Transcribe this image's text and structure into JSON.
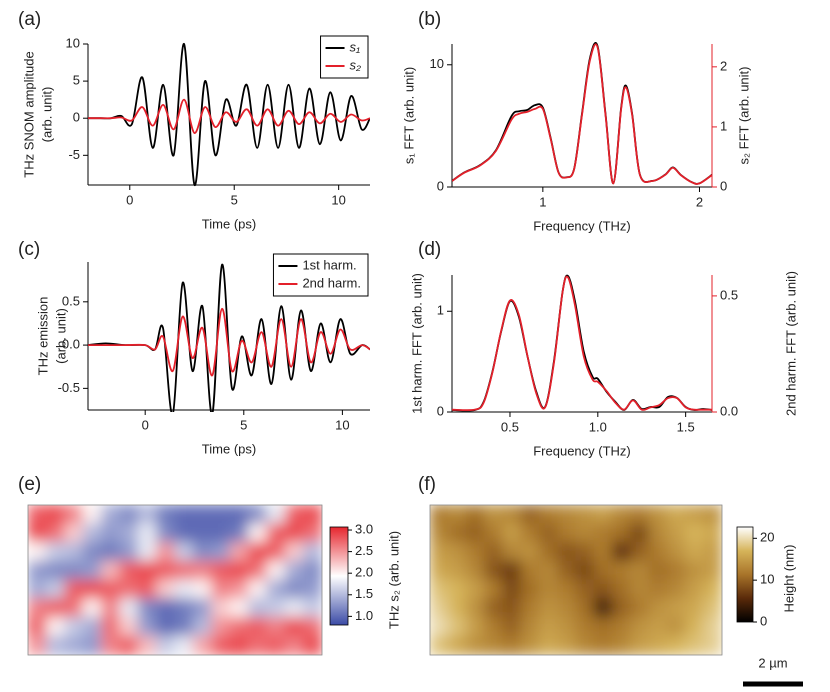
{
  "chart_data": [
    {
      "type": "line",
      "label": "(a)",
      "xlabel": "Time (ps)",
      "ylabel": [
        "THz SNOM amplitude",
        "(arb. unit)"
      ],
      "xlim": [
        -2,
        11.5
      ],
      "xticks": [
        0,
        5,
        10
      ],
      "ylim": [
        -9,
        10
      ],
      "yticks": [
        10,
        5,
        0,
        -5
      ],
      "legend": "upper right",
      "x": [
        -2,
        -1.4,
        -0.9,
        -0.4,
        0.1,
        0.6,
        1.1,
        1.6,
        2.1,
        2.6,
        3.1,
        3.6,
        4.1,
        4.6,
        5.1,
        5.6,
        6.1,
        6.6,
        7.1,
        7.6,
        8.1,
        8.6,
        9.1,
        9.6,
        10.1,
        10.6,
        11.1,
        11.5
      ],
      "series": [
        {
          "name": "s₁",
          "color": "#000000",
          "values": [
            0,
            0,
            0,
            0.3,
            -0.8,
            5.5,
            -4,
            4.5,
            -5,
            10,
            -9,
            5,
            -5,
            2.5,
            -1,
            4.5,
            -4,
            4.5,
            -4,
            4.5,
            -4,
            4,
            -3.5,
            3.5,
            -3,
            3,
            -1.5,
            0
          ]
        },
        {
          "name": "s₂",
          "color": "#e3202a",
          "values": [
            0,
            0,
            0,
            0.1,
            -0.3,
            1.5,
            -1,
            1.8,
            -1.5,
            2.5,
            -2,
            1.5,
            -1.2,
            0.8,
            -0.5,
            1.2,
            -1,
            1.2,
            -1,
            1,
            -0.8,
            0.8,
            -0.7,
            0.6,
            -0.5,
            0.5,
            -0.3,
            0
          ]
        }
      ]
    },
    {
      "type": "line",
      "label": "(b)",
      "xlabel": "Frequency (THz)",
      "ylabel": [
        "s₁ FFT (arb. unit)"
      ],
      "y2label": "s₂ FFT (arb. unit)",
      "xlim": [
        0.42,
        2.08
      ],
      "xticks": [
        1,
        2
      ],
      "ylim": [
        0,
        11.7
      ],
      "yticks": [
        0,
        10
      ],
      "y2lim": [
        0,
        2.38
      ],
      "y2ticks": [
        0,
        1,
        2
      ],
      "x": [
        0.42,
        0.5,
        0.6,
        0.7,
        0.8,
        0.85,
        0.9,
        0.95,
        1.0,
        1.05,
        1.1,
        1.15,
        1.2,
        1.25,
        1.3,
        1.35,
        1.4,
        1.45,
        1.5,
        1.53,
        1.57,
        1.62,
        1.7,
        1.78,
        1.83,
        1.88,
        1.95,
        2.0,
        2.08
      ],
      "series": [
        {
          "color": "#000000",
          "values": [
            0.5,
            1.2,
            1.8,
            3,
            5.8,
            6.2,
            6.3,
            6.7,
            6.5,
            4,
            1.2,
            0.8,
            1.5,
            6,
            10.5,
            11.5,
            6,
            0.3,
            6.5,
            8.3,
            6,
            1,
            0.5,
            1,
            1.6,
            1,
            0.4,
            0.3,
            1
          ]
        },
        {
          "color": "#e3202a",
          "axis": "y2",
          "values": [
            0.1,
            0.24,
            0.36,
            0.6,
            1.12,
            1.22,
            1.25,
            1.3,
            1.3,
            0.8,
            0.24,
            0.16,
            0.3,
            1.2,
            2.1,
            2.32,
            1.2,
            0.06,
            1.3,
            1.66,
            1.2,
            0.2,
            0.1,
            0.2,
            0.32,
            0.2,
            0.08,
            0.06,
            0.2
          ]
        }
      ]
    },
    {
      "type": "line",
      "label": "(c)",
      "xlabel": "Time (ps)",
      "ylabel": [
        "THz emission",
        "(arb. unit)"
      ],
      "xlim": [
        -2.9,
        11.4
      ],
      "xticks": [
        0,
        5,
        10
      ],
      "ylim": [
        -0.75,
        0.96
      ],
      "yticks": [
        0.5,
        {
          "value": 0,
          "label": "0.0"
        },
        -0.5
      ],
      "legend": "upper right",
      "x": [
        -2.9,
        -2,
        -1,
        0,
        0.5,
        0.9,
        1.4,
        1.9,
        2.4,
        2.9,
        3.4,
        3.9,
        4.4,
        4.9,
        5.4,
        5.9,
        6.4,
        6.9,
        7.4,
        7.9,
        8.4,
        8.9,
        9.4,
        9.9,
        10.4,
        11,
        11.4
      ],
      "series": [
        {
          "name": "1st harm.",
          "color": "#000000",
          "values": [
            0,
            0.02,
            0,
            0,
            -0.05,
            0.2,
            -0.8,
            0.72,
            -0.3,
            0.45,
            -0.8,
            0.93,
            -0.5,
            0.1,
            -0.35,
            0.3,
            -0.45,
            0.45,
            -0.4,
            0.4,
            -0.3,
            0.25,
            -0.2,
            0.3,
            -0.1,
            0,
            -0.05
          ]
        },
        {
          "name": "2nd harm.",
          "color": "#e3202a",
          "values": [
            0,
            0,
            0,
            0,
            -0.05,
            0.1,
            -0.3,
            0.33,
            -0.15,
            0.2,
            -0.35,
            0.42,
            -0.3,
            0.05,
            -0.2,
            0.15,
            -0.25,
            0.3,
            -0.25,
            0.3,
            -0.2,
            0.15,
            -0.1,
            0.18,
            -0.05,
            0,
            -0.05
          ]
        }
      ]
    },
    {
      "type": "line",
      "label": "(d)",
      "xlabel": "Frequency (THz)",
      "ylabel": [
        "1st harm. FFT (arb. unit)"
      ],
      "y2label": "2nd harm. FFT (arb. unit)",
      "xlim": [
        0.17,
        1.65
      ],
      "xticks": [
        0.5,
        {
          "value": 1,
          "label": "1.0"
        },
        1.5
      ],
      "ylim": [
        0,
        1.36
      ],
      "yticks": [
        0,
        1
      ],
      "y2lim": [
        0,
        0.59
      ],
      "y2ticks": [
        {
          "value": 0,
          "label": "0.0"
        },
        0.5
      ],
      "x": [
        0.17,
        0.3,
        0.35,
        0.4,
        0.45,
        0.5,
        0.55,
        0.6,
        0.65,
        0.7,
        0.75,
        0.8,
        0.83,
        0.87,
        0.92,
        0.97,
        1.0,
        1.05,
        1.1,
        1.15,
        1.2,
        1.25,
        1.3,
        1.35,
        1.4,
        1.45,
        1.5,
        1.55,
        1.6,
        1.65
      ],
      "series": [
        {
          "color": "#000000",
          "values": [
            0.02,
            0.02,
            0.1,
            0.4,
            0.8,
            1.1,
            0.95,
            0.55,
            0.2,
            0.05,
            0.5,
            1.2,
            1.35,
            1.1,
            0.6,
            0.35,
            0.33,
            0.2,
            0.1,
            0.02,
            0.12,
            0.03,
            0.05,
            0.05,
            0.15,
            0.14,
            0.05,
            0.02,
            0.03,
            0.02
          ]
        },
        {
          "color": "#e3202a",
          "axis": "y2",
          "values": [
            0.01,
            0.01,
            0.04,
            0.17,
            0.35,
            0.48,
            0.42,
            0.24,
            0.08,
            0.02,
            0.21,
            0.52,
            0.58,
            0.46,
            0.24,
            0.14,
            0.13,
            0.09,
            0.04,
            0.01,
            0.05,
            0.01,
            0.02,
            0.03,
            0.06,
            0.06,
            0.02,
            0.01,
            0.01,
            0.01
          ]
        }
      ]
    },
    {
      "type": "heatmap",
      "label": "(e)",
      "colorbar_label": "THz s₂ (arb. unit)",
      "clim": [
        0.8,
        3.07
      ],
      "cticks": [
        {
          "value": 3,
          "label": "3.0"
        },
        2.5,
        {
          "value": 2,
          "label": "2.0"
        },
        1.5,
        {
          "value": 1,
          "label": "1.0"
        }
      ],
      "colormap": [
        "#3b4ba6",
        "#ffffff",
        "#e6262e"
      ],
      "z": [
        [
          2.8,
          2.9,
          2.6,
          2.0,
          1.4,
          1.2,
          1.5,
          1.1,
          1.0,
          1.0,
          1.0,
          1.0,
          1.2,
          1.8,
          2.8,
          2.9
        ],
        [
          2.9,
          2.7,
          2.2,
          1.5,
          1.3,
          1.4,
          1.8,
          1.2,
          1.0,
          1.0,
          1.0,
          1.1,
          2.0,
          2.8,
          2.9,
          2.7
        ],
        [
          2.0,
          1.6,
          1.5,
          1.2,
          1.1,
          1.3,
          1.8,
          2.5,
          1.6,
          1.2,
          1.3,
          2.4,
          2.9,
          2.8,
          2.2,
          1.5
        ],
        [
          1.3,
          1.2,
          1.2,
          1.3,
          2.3,
          2.8,
          2.9,
          2.8,
          2.7,
          2.6,
          2.8,
          2.9,
          2.7,
          2.0,
          1.4,
          1.2
        ],
        [
          1.4,
          1.6,
          2.8,
          2.9,
          2.8,
          2.7,
          2.8,
          2.2,
          1.8,
          2.0,
          2.6,
          2.5,
          2.0,
          1.4,
          1.2,
          1.3
        ],
        [
          2.6,
          2.8,
          2.7,
          2.0,
          2.6,
          1.8,
          1.2,
          1.0,
          1.1,
          1.3,
          2.2,
          2.0,
          1.5,
          1.6,
          1.8,
          1.6
        ],
        [
          2.8,
          2.0,
          1.6,
          1.4,
          2.7,
          2.2,
          1.3,
          1.0,
          1.1,
          1.5,
          2.5,
          2.7,
          2.8,
          2.6,
          2.9,
          2.7
        ],
        [
          2.5,
          1.5,
          1.4,
          1.3,
          2.6,
          2.8,
          2.3,
          1.6,
          1.8,
          2.4,
          2.8,
          2.9,
          2.7,
          2.8,
          2.6,
          2.9
        ]
      ]
    },
    {
      "type": "heatmap",
      "label": "(f)",
      "colorbar_label": "Height (nm)",
      "clim": [
        0,
        22.7
      ],
      "cticks": [
        20,
        10,
        0
      ],
      "colormap": [
        "#000000",
        "#5a2a0a",
        "#a8742a",
        "#d6b45a",
        "#ffffff"
      ],
      "scale_bar": "2 µm",
      "z": [
        [
          12,
          13,
          11,
          14,
          13,
          10,
          12,
          13,
          14,
          15,
          13,
          12,
          14,
          16,
          15,
          14
        ],
        [
          13,
          11,
          10,
          12,
          15,
          12,
          10,
          12,
          13,
          12,
          11,
          8,
          13,
          15,
          17,
          16
        ],
        [
          15,
          14,
          12,
          10,
          13,
          14,
          11,
          9,
          10,
          12,
          6,
          10,
          12,
          14,
          16,
          15
        ],
        [
          16,
          15,
          13,
          9,
          7,
          12,
          13,
          10,
          8,
          11,
          12,
          13,
          11,
          12,
          14,
          15
        ],
        [
          18,
          17,
          15,
          12,
          8,
          11,
          13,
          12,
          10,
          9,
          11,
          13,
          12,
          13,
          15,
          17
        ],
        [
          19,
          17,
          14,
          10,
          9,
          12,
          14,
          13,
          11,
          4,
          10,
          12,
          14,
          15,
          16,
          18
        ],
        [
          20,
          18,
          15,
          12,
          10,
          13,
          15,
          14,
          12,
          11,
          12,
          14,
          15,
          14,
          17,
          19
        ],
        [
          18,
          16,
          14,
          13,
          12,
          14,
          16,
          15,
          13,
          12,
          13,
          15,
          16,
          17,
          18,
          19
        ]
      ]
    }
  ]
}
